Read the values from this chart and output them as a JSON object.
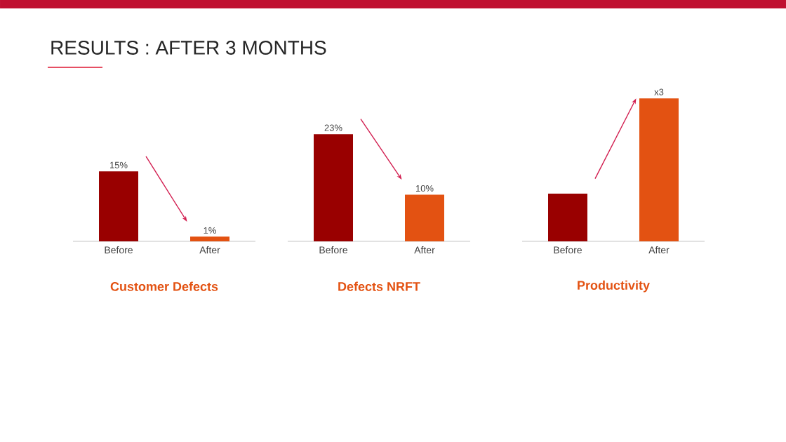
{
  "chart_data": [
    {
      "type": "bar",
      "title": "Customer Defects",
      "annotations": [
        "RESULTS : AFTER 3 MONTHS"
      ],
      "categories": [
        "Before",
        "After"
      ],
      "values": [
        15,
        1
      ],
      "colors": [
        "#990000",
        "#e35212"
      ],
      "value_labels": [
        "15%",
        "1%"
      ]
    },
    {
      "type": "bar",
      "title": "Defects  NRFT",
      "categories": [
        "Before",
        "After"
      ],
      "values": [
        23,
        10
      ],
      "colors": [
        "#990000",
        "#e35212"
      ],
      "value_labels": [
        "23%",
        "10%"
      ]
    },
    {
      "type": "bar",
      "title": "Productivity",
      "categories": [
        "Before",
        "After"
      ],
      "values": [
        1,
        3
      ],
      "colors": [
        "#990000",
        "#e35212"
      ],
      "value_labels": [
        null,
        "x3"
      ]
    }
  ]
}
